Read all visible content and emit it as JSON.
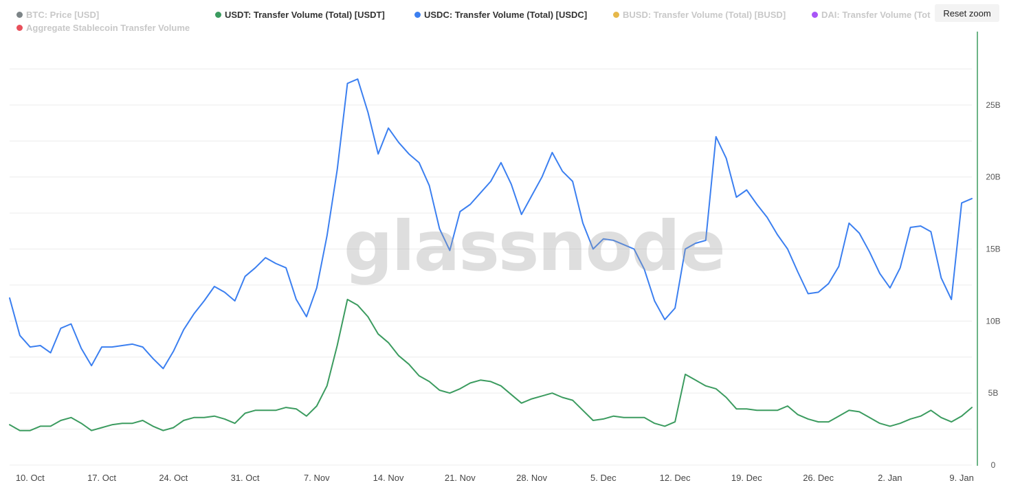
{
  "legend": [
    {
      "label": "BTC: Price [USD]",
      "color": "#7c8487",
      "active": false
    },
    {
      "label": "Aggregate Stablecoin Transfer Volume",
      "color": "#e8505b",
      "active": false
    },
    {
      "label": "USDT: Transfer Volume (Total) [USDT]",
      "color": "#3b9b5f",
      "active": true
    },
    {
      "label": "USDC: Transfer Volume (Total) [USDC]",
      "color": "#3b7ff0",
      "active": true
    },
    {
      "label": "BUSD: Transfer Volume (Total) [BUSD]",
      "color": "#e6b84a",
      "active": false
    },
    {
      "label": "DAI: Transfer Volume (Tot",
      "color": "#a855f7",
      "active": false
    }
  ],
  "reset_zoom_label": "Reset zoom",
  "watermark": "glassnode",
  "chart_data": {
    "type": "line",
    "x_start": "2022-10-08",
    "x_end": "2023-01-10",
    "x_ticks": [
      "10. Oct",
      "17. Oct",
      "24. Oct",
      "31. Oct",
      "7. Nov",
      "14. Nov",
      "21. Nov",
      "28. Nov",
      "5. Dec",
      "12. Dec",
      "19. Dec",
      "26. Dec",
      "2. Jan",
      "9. Jan"
    ],
    "y_ticks": [
      "0",
      "5B",
      "10B",
      "15B",
      "20B",
      "25B"
    ],
    "y_tick_values": [
      0,
      5,
      10,
      15,
      20,
      25
    ],
    "ylim": [
      0,
      30
    ],
    "y_axis_position": "right",
    "grid": true,
    "legend_position": "top",
    "series": [
      {
        "name": "USDC: Transfer Volume (Total) [USDC]",
        "color": "#3b7ff0",
        "values": [
          11.6,
          9.0,
          8.2,
          8.3,
          7.8,
          9.5,
          9.8,
          8.1,
          6.9,
          8.2,
          8.2,
          8.3,
          8.4,
          8.2,
          7.4,
          6.7,
          7.9,
          9.4,
          10.5,
          11.4,
          12.4,
          12.0,
          11.4,
          13.1,
          13.7,
          14.4,
          14.0,
          13.7,
          11.5,
          10.3,
          12.3,
          15.9,
          20.5,
          26.5,
          26.8,
          24.5,
          21.6,
          23.4,
          22.4,
          21.6,
          21.0,
          19.4,
          16.4,
          14.9,
          17.6,
          18.1,
          18.9,
          19.7,
          21.0,
          19.5,
          17.4,
          18.7,
          20.0,
          21.7,
          20.4,
          19.7,
          16.8,
          15.0,
          15.7,
          15.6,
          15.3,
          15.0,
          13.6,
          11.4,
          10.1,
          10.9,
          15.0,
          15.4,
          15.6,
          22.8,
          21.3,
          18.6,
          19.1,
          18.1,
          17.2,
          16.0,
          15.0,
          13.4,
          11.9,
          12.0,
          12.6,
          13.8,
          16.8,
          16.1,
          14.8,
          13.3,
          12.3,
          13.7,
          16.5,
          16.6,
          16.2,
          13.0,
          11.5,
          18.2,
          18.5
        ]
      },
      {
        "name": "USDT: Transfer Volume (Total) [USDT]",
        "color": "#3b9b5f",
        "values": [
          2.8,
          2.4,
          2.4,
          2.7,
          2.7,
          3.1,
          3.3,
          2.9,
          2.4,
          2.6,
          2.8,
          2.9,
          2.9,
          3.1,
          2.7,
          2.4,
          2.6,
          3.1,
          3.3,
          3.3,
          3.4,
          3.2,
          2.9,
          3.6,
          3.8,
          3.8,
          3.8,
          4.0,
          3.9,
          3.4,
          4.1,
          5.5,
          8.3,
          11.5,
          11.1,
          10.3,
          9.1,
          8.5,
          7.6,
          7.0,
          6.2,
          5.8,
          5.2,
          5.0,
          5.3,
          5.7,
          5.9,
          5.8,
          5.5,
          4.9,
          4.3,
          4.6,
          4.8,
          5.0,
          4.7,
          4.5,
          3.8,
          3.1,
          3.2,
          3.4,
          3.3,
          3.3,
          3.3,
          2.9,
          2.7,
          3.0,
          6.3,
          5.9,
          5.5,
          5.3,
          4.7,
          3.9,
          3.9,
          3.8,
          3.8,
          3.8,
          4.1,
          3.5,
          3.2,
          3.0,
          3.0,
          3.4,
          3.8,
          3.7,
          3.3,
          2.9,
          2.7,
          2.9,
          3.2,
          3.4,
          3.8,
          3.3,
          3.0,
          3.4,
          4.0
        ]
      }
    ]
  }
}
